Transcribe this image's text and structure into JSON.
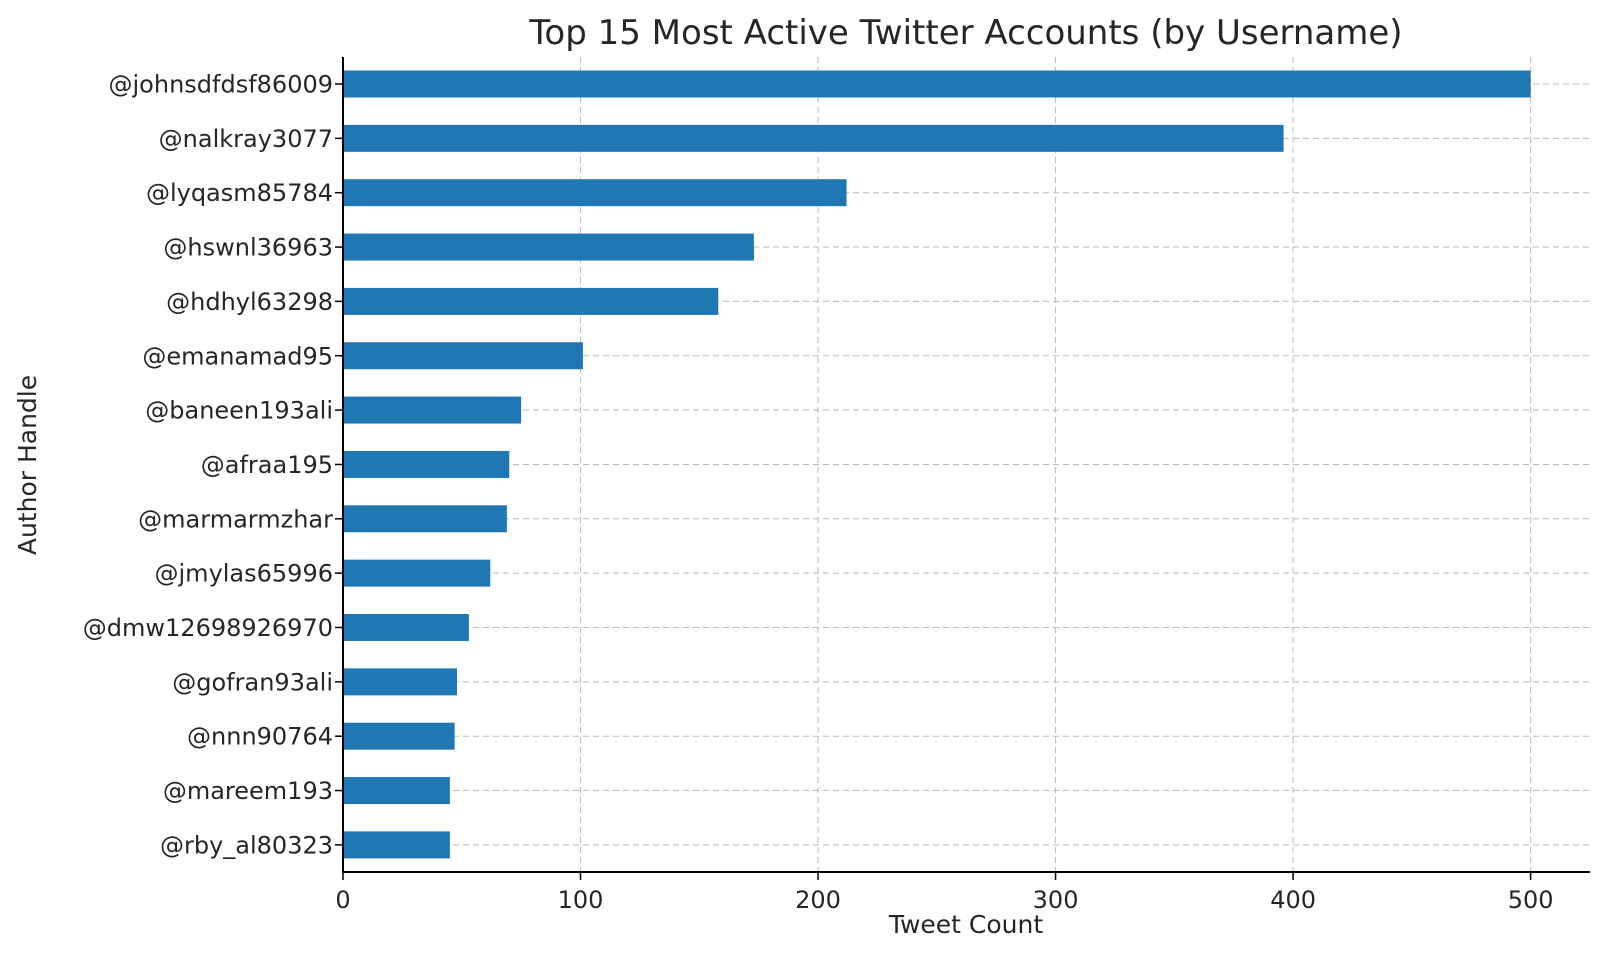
{
  "chart_data": {
    "type": "bar",
    "orientation": "horizontal",
    "title": "Top 15 Most Active Twitter Accounts (by Username)",
    "xlabel": "Tweet Count",
    "ylabel": "Author Handle",
    "xlim": [
      0,
      525
    ],
    "xticks": [
      0,
      100,
      200,
      300,
      400,
      500
    ],
    "grid": true,
    "bar_color": "#1f77b4",
    "categories": [
      "@johnsdfdsf86009",
      "@nalkray3077",
      "@lyqasm85784",
      "@hswnl36963",
      "@hdhyl63298",
      "@emanamad95",
      "@baneen193ali",
      "@afraa195",
      "@marmarmzhar",
      "@jmylas65996",
      "@dmw12698926970",
      "@gofran93ali",
      "@nnn90764",
      "@mareem193",
      "@rby_al80323"
    ],
    "values": [
      500,
      396,
      212,
      173,
      158,
      101,
      75,
      70,
      69,
      62,
      53,
      48,
      47,
      45,
      45
    ]
  }
}
